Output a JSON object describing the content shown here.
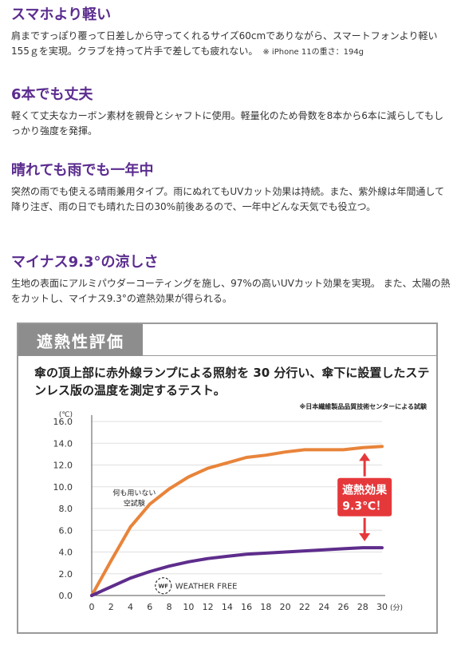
{
  "sections": [
    {
      "heading": "スマホより軽い",
      "text": "肩まですっぽり覆って日差しから守ってくれるサイズ60cmでありながら、スマートフォンより軽い155ｇを実現。クラブを持って片手で差しても疲れない。",
      "note": "※ iPhone 11の重さ：194g"
    },
    {
      "heading": "6本でも丈夫",
      "text": "軽くて丈夫なカーボン素材を親骨とシャフトに使用。軽量化のため骨数を8本から6本に減らしてもしっかり強度を発揮。"
    },
    {
      "heading": "晴れても雨でも一年中",
      "text": "突然の雨でも使える晴雨兼用タイプ。雨にぬれてもUVカット効果は持続。また、紫外線は年間通して降り注ぎ、雨の日でも晴れた日の30%前後あるので、一年中どんな天気でも役立つ。"
    },
    {
      "heading": "マイナス9.3°の涼しさ",
      "text": "生地の表面にアルミパウダーコーティングを施し、97%の高いUVカット効果を実現。 また、太陽の熱をカットし、マイナス9.3°の遮熱効果が得られる。"
    }
  ],
  "panel": {
    "tab_label": "遮熱性評価",
    "description": "傘の頂上部に赤外線ランプによる照射を 30 分行い、傘下に設置したステンレス版の温度を測定するテスト。",
    "test_note": "※日本繊維製品品質技術センターによる試験"
  },
  "chart_data": {
    "type": "line",
    "x": [
      0,
      2,
      4,
      6,
      8,
      10,
      12,
      14,
      16,
      18,
      20,
      22,
      24,
      26,
      28,
      30
    ],
    "xlim": [
      0,
      30
    ],
    "ylim": [
      0,
      16
    ],
    "y_unit": "(℃)",
    "x_unit": "(分)",
    "yticks": [
      "0.0",
      "2.0",
      "4.0",
      "6.0",
      "8.0",
      "10.0",
      "12.0",
      "14.0",
      "16.0"
    ],
    "xticks": [
      "0",
      "2",
      "4",
      "6",
      "8",
      "10",
      "12",
      "14",
      "16",
      "18",
      "20",
      "22",
      "24",
      "26",
      "28",
      "30"
    ],
    "grid": true,
    "series": [
      {
        "label": "何も用いない空試験",
        "color": "#e8843a",
        "values": [
          0.0,
          3.2,
          6.3,
          8.4,
          9.8,
          10.9,
          11.7,
          12.2,
          12.7,
          12.9,
          13.2,
          13.4,
          13.4,
          13.4,
          13.6,
          13.7
        ]
      },
      {
        "label": "",
        "color": "#5e2d8c",
        "values": [
          0.0,
          0.8,
          1.6,
          2.2,
          2.7,
          3.1,
          3.4,
          3.6,
          3.8,
          3.9,
          4.0,
          4.1,
          4.2,
          4.3,
          4.4,
          4.4
        ]
      }
    ],
    "blank_label_line1": "何も用いない",
    "blank_label_line2": "空試験",
    "logo_text": "WEATHER FREE",
    "callout_line1": "遮熱効果",
    "callout_line2": "9.3℃！",
    "callout_color": "#e5383b",
    "axis_color": "#555555",
    "grid_color": "#e0e0e0"
  }
}
